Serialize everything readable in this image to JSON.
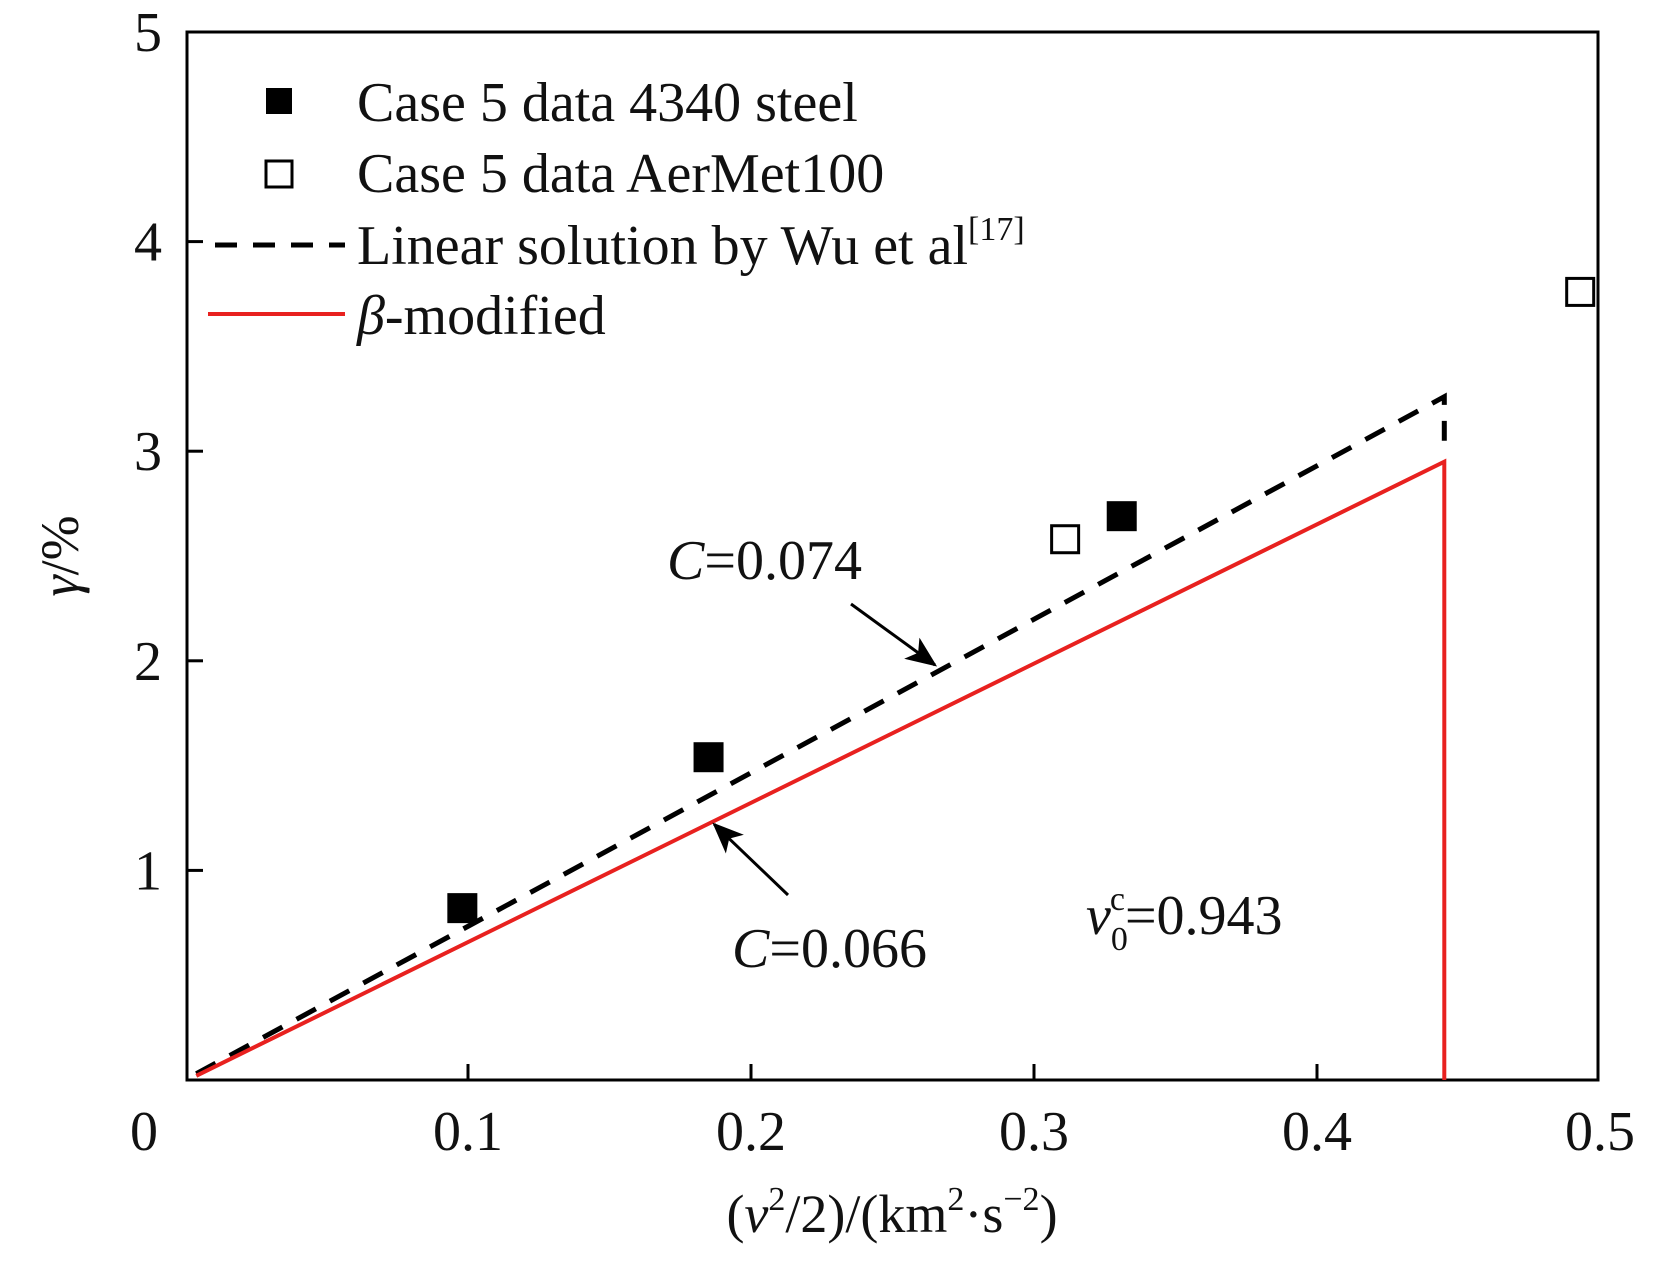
{
  "chart_data": {
    "type": "scatter",
    "xlabel": "(v²/2)/(km²·s⁻²)",
    "ylabel": "γ/%",
    "xlim": [
      0,
      0.5
    ],
    "ylim": [
      0,
      5
    ],
    "xticks": [
      0,
      0.1,
      0.2,
      0.3,
      0.4,
      0.5
    ],
    "yticks": [
      1,
      2,
      3,
      4,
      5
    ],
    "legend_position": "top-left",
    "grid": false,
    "series": [
      {
        "name": "Case 5 data 4340 steel",
        "kind": "scatter",
        "marker": "filled-square",
        "color": "#000000",
        "x": [
          0.098,
          0.185,
          0.331
        ],
        "y": [
          0.82,
          1.54,
          2.69
        ]
      },
      {
        "name": "Case 5 data AerMet100",
        "kind": "scatter",
        "marker": "open-square",
        "color": "#000000",
        "x": [
          0.311,
          0.493
        ],
        "y": [
          2.58,
          3.76
        ]
      },
      {
        "name": "Linear solution by Wu et al",
        "name_superscript": "[17]",
        "kind": "line",
        "style": "dashed",
        "color": "#000000",
        "x": [
          0.004,
          0.445,
          0.445
        ],
        "y": [
          0.03,
          3.26,
          3.05
        ]
      },
      {
        "name": "β-modified",
        "kind": "line",
        "style": "solid",
        "color": "#e8211f",
        "x": [
          0.004,
          0.445,
          0.445
        ],
        "y": [
          0.02,
          2.95,
          0.0
        ]
      }
    ],
    "annotations": [
      {
        "id": "c074",
        "text": "C=0.074",
        "italic_part": "C",
        "rest": "=0.074",
        "arrow_to": [
          0.265,
          1.98
        ]
      },
      {
        "id": "c066",
        "text": "C=0.066",
        "italic_part": "C",
        "rest": "=0.066",
        "arrow_to": [
          0.187,
          1.22
        ]
      },
      {
        "id": "v0c",
        "text": "v₀ᶜ=0.943",
        "italic_part": "v",
        "sub": "0",
        "sup": "c",
        "rest": "=0.943"
      }
    ]
  }
}
